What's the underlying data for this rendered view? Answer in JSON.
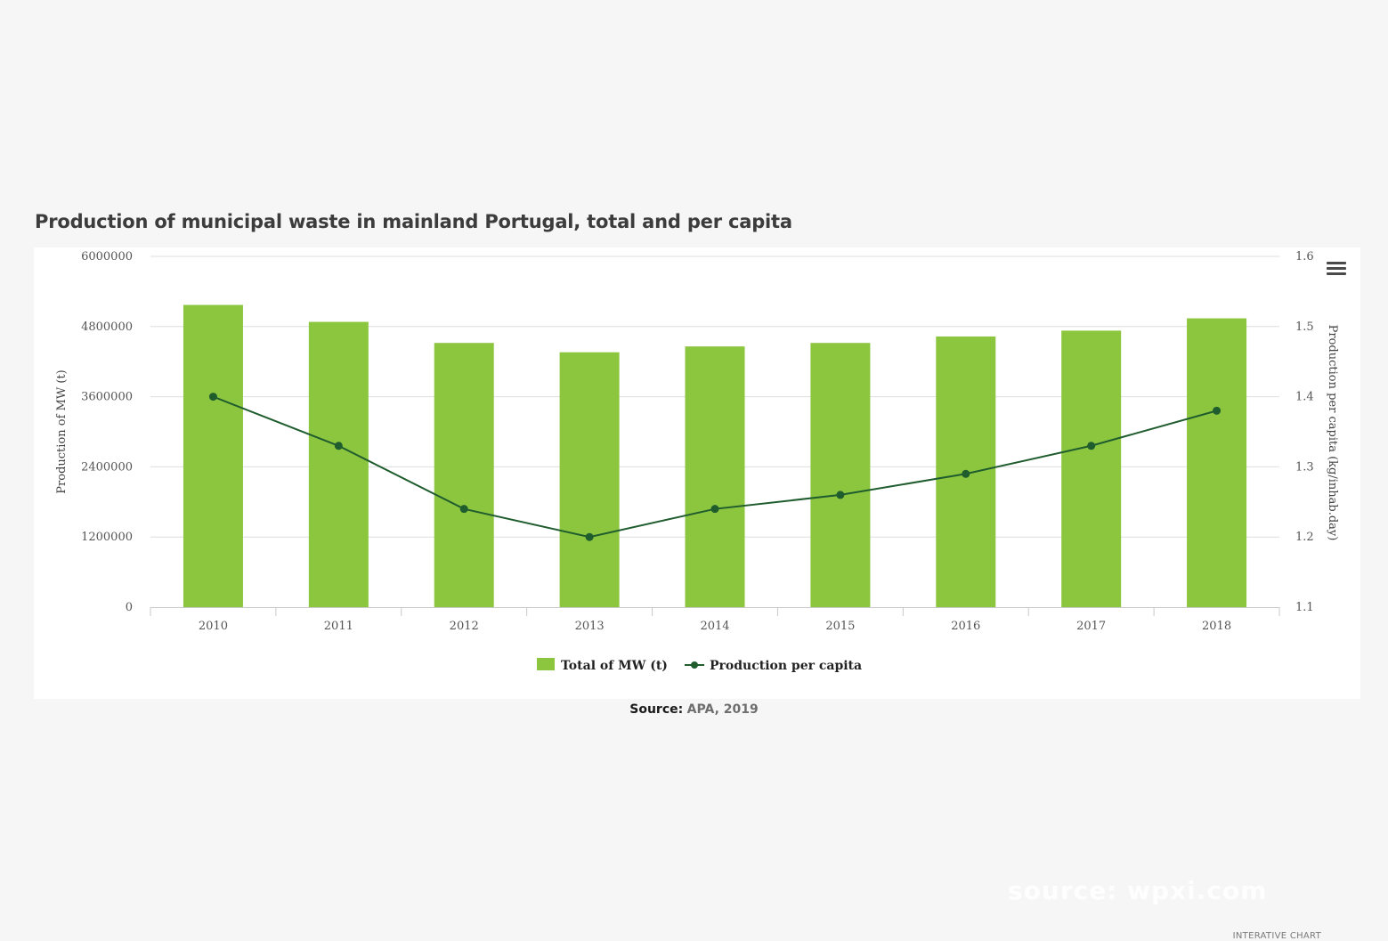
{
  "colors": {
    "bar": "#8cc63f",
    "line": "#1f5c2e",
    "grid": "#dedede",
    "axis": "#c8c8c8"
  },
  "icons": {
    "menu": "hamburger-menu-icon"
  },
  "credit": "INTERATIVE CHART",
  "source": {
    "label": "Source:",
    "value": "APA, 2019"
  },
  "watermark": "source: wpxi.com",
  "chart_data": {
    "type": "bar",
    "title": "Production of municipal waste in mainland Portugal, total and per capita",
    "categories": [
      "2010",
      "2011",
      "2012",
      "2013",
      "2014",
      "2015",
      "2016",
      "2017",
      "2018"
    ],
    "series": [
      {
        "name": "Total of MW (t)",
        "type": "bar",
        "axis": "left",
        "values": [
          5170000,
          4880000,
          4520000,
          4360000,
          4460000,
          4520000,
          4630000,
          4730000,
          4940000
        ]
      },
      {
        "name": "Production per capita",
        "type": "line",
        "axis": "right",
        "values": [
          1.4,
          1.33,
          1.24,
          1.2,
          1.24,
          1.26,
          1.29,
          1.33,
          1.38
        ]
      }
    ],
    "ylabel_left": "Production of MW (t)",
    "ylabel_right": "Production per capita (kg/inhab.day)",
    "ylim_left": [
      0,
      6000000
    ],
    "yticks_left": [
      "0",
      "1200000",
      "2400000",
      "3600000",
      "4800000",
      "6000000"
    ],
    "ylim_right": [
      1.1,
      1.6
    ],
    "yticks_right": [
      "1.1",
      "1.2",
      "1.3",
      "1.4",
      "1.5",
      "1.6"
    ],
    "grid": true,
    "legend": "bottom-center"
  }
}
